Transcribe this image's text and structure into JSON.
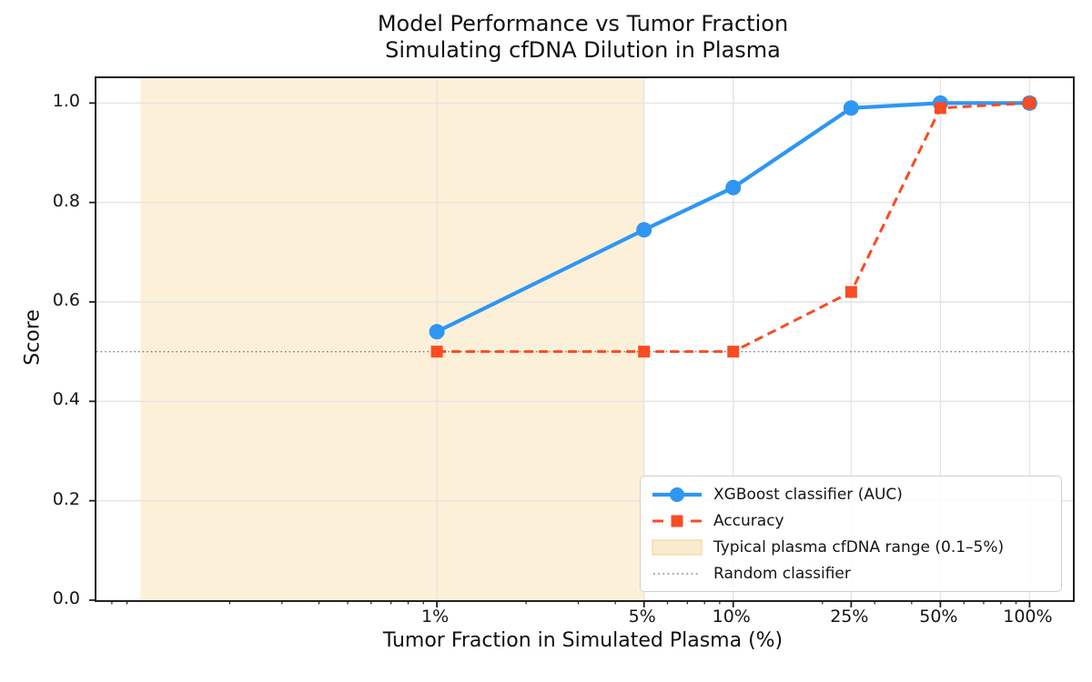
{
  "title": {
    "line1": "Model Performance vs Tumor Fraction",
    "line2": "Simulating cfDNA Dilution in Plasma"
  },
  "axes": {
    "x_label": "Tumor Fraction in Simulated Plasma (%)",
    "y_label": "Score"
  },
  "chart_data": {
    "type": "line",
    "title": "Model Performance vs Tumor Fraction — Simulating cfDNA Dilution in Plasma",
    "xlabel": "Tumor Fraction in Simulated Plasma (%)",
    "ylabel": "Score",
    "x_scale": "log",
    "x_unit": "percent tumor fraction",
    "x": [
      1,
      5,
      10,
      25,
      50,
      100
    ],
    "x_tick_labels": [
      "1%",
      "5%",
      "10%",
      "25%",
      "50%",
      "100%"
    ],
    "y_ticks": [
      0.0,
      0.2,
      0.4,
      0.6,
      0.8,
      1.0
    ],
    "y_tick_labels": [
      "0.0",
      "0.2",
      "0.4",
      "0.6",
      "0.8",
      "1.0"
    ],
    "xlim": [
      0.071,
      140
    ],
    "ylim": [
      0,
      1.05
    ],
    "grid": true,
    "legend_position": "lower right",
    "series": [
      {
        "name": "XGBoost classifier (AUC)",
        "values": [
          0.54,
          0.745,
          0.83,
          0.99,
          1.0,
          1.0
        ],
        "color": "#2E96F3",
        "line_style": "solid",
        "marker": "circle"
      },
      {
        "name": "Accuracy",
        "values": [
          0.5,
          0.5,
          0.5,
          0.62,
          0.99,
          1.0
        ],
        "color": "#FA4B22",
        "line_style": "dashed",
        "marker": "square"
      }
    ],
    "band": {
      "label": "Typical plasma cfDNA range (0.1–5%)",
      "from_pct": 0.1,
      "to_pct": 5,
      "fill": "#FDF0D9"
    },
    "reference_line": {
      "label": "Random classifier",
      "value": 0.5,
      "color": "#808080",
      "line_style": "dotted"
    },
    "colors": {
      "grid": "#e4e4e4",
      "spine": "#202020",
      "legend_border": "#cfcfcf"
    }
  }
}
